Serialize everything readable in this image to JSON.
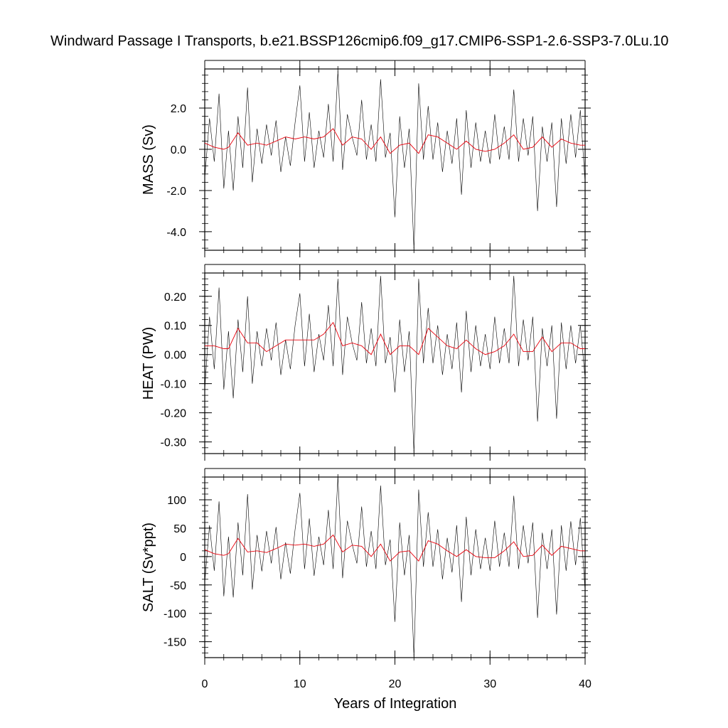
{
  "title": "Windward Passage I Transports, b.e21.BSSP126cmip6.f09_g17.CMIP6-SSP1-2.6-SSP3-7.0Lu.10",
  "xlabel": "Years of Integration",
  "colors": {
    "raw": "#000000",
    "smooth": "#e8000b",
    "frame": "#000000"
  },
  "chart_data": [
    {
      "type": "line",
      "ylabel": "MASS (Sv)",
      "xlim": [
        0,
        40
      ],
      "ylim": [
        -4.9,
        3.9
      ],
      "xticks": [
        0,
        10,
        20,
        30,
        40
      ],
      "xtick_labels": [
        "0",
        "10",
        "20",
        "30",
        "40"
      ],
      "yticks": [
        2.0,
        0.0,
        -2.0,
        -4.0
      ],
      "ytick_labels": [
        "2.0",
        "0.0",
        "-2.0",
        "-4.0"
      ],
      "series": [
        {
          "style": "thin-black",
          "x": [
            0,
            0.5,
            1,
            1.5,
            2,
            2.5,
            3,
            3.5,
            4,
            4.5,
            5,
            5.5,
            6,
            6.5,
            7,
            7.5,
            8,
            8.5,
            9,
            9.5,
            10,
            10.5,
            11,
            11.5,
            12,
            12.5,
            13,
            13.5,
            14,
            14.5,
            15,
            15.5,
            16,
            16.5,
            17,
            17.5,
            18,
            18.5,
            19,
            19.5,
            20,
            20.5,
            21,
            21.5,
            22,
            22.5,
            23,
            23.5,
            24,
            24.5,
            25,
            25.5,
            26,
            26.5,
            27,
            27.5,
            28,
            28.5,
            29,
            29.5,
            30,
            30.5,
            31,
            31.5,
            32,
            32.5,
            33,
            33.5,
            34,
            34.5,
            35,
            35.5,
            36,
            36.5,
            37,
            37.5,
            38,
            38.5,
            39,
            39.5,
            40
          ],
          "y": [
            -1.4,
            1.5,
            -0.6,
            2.7,
            -1.9,
            0.9,
            -2.0,
            1.6,
            -0.9,
            3.0,
            -1.6,
            1.0,
            -0.7,
            1.2,
            -0.3,
            1.4,
            -1.1,
            0.6,
            -0.8,
            1.3,
            3.1,
            -0.6,
            1.8,
            -0.9,
            0.9,
            -0.4,
            2.2,
            -0.6,
            3.8,
            -1.0,
            1.7,
            0.6,
            -0.3,
            2.4,
            -0.5,
            1.2,
            -0.6,
            3.4,
            -0.4,
            0.8,
            -3.3,
            1.6,
            -0.9,
            1.0,
            -4.9,
            3.2,
            -0.5,
            2.1,
            -0.5,
            1.3,
            -1.1,
            0.9,
            -0.7,
            1.5,
            -2.2,
            1.9,
            -0.9,
            1.3,
            -0.6,
            0.9,
            -0.7,
            1.7,
            -0.5,
            1.1,
            -0.5,
            2.9,
            -0.6,
            1.5,
            -0.3,
            1.6,
            -3.0,
            1.1,
            -0.6,
            1.3,
            -2.8,
            1.5,
            -0.7,
            1.7,
            -0.4,
            1.9,
            -1.6
          ]
        },
        {
          "style": "smooth-red",
          "x": [
            0,
            1,
            2,
            2.5,
            3.5,
            4.5,
            5.5,
            6.5,
            7.5,
            8.5,
            9.5,
            10.5,
            11.5,
            12.5,
            13.5,
            14.5,
            15.5,
            16.5,
            17.5,
            18.5,
            19.5,
            20.5,
            21.5,
            22.5,
            23.5,
            24.5,
            25.5,
            26.5,
            27.5,
            28.5,
            29.5,
            30.5,
            31.5,
            32.5,
            33.5,
            34.5,
            35.5,
            36.5,
            37.5,
            38.5,
            39.5,
            40
          ],
          "y": [
            0.3,
            0.1,
            0.0,
            0.1,
            0.8,
            0.2,
            0.3,
            0.2,
            0.4,
            0.6,
            0.5,
            0.6,
            0.5,
            0.6,
            1.0,
            0.2,
            0.6,
            0.5,
            0.0,
            0.6,
            -0.2,
            0.2,
            0.3,
            -0.2,
            0.7,
            0.6,
            0.3,
            0.0,
            0.4,
            0.0,
            -0.1,
            0.0,
            0.3,
            0.7,
            0.0,
            0.1,
            0.6,
            0.1,
            0.5,
            0.3,
            0.2,
            0.2
          ]
        }
      ]
    },
    {
      "type": "line",
      "ylabel": "HEAT (PW)",
      "xlim": [
        0,
        40
      ],
      "ylim": [
        -0.34,
        0.28
      ],
      "xticks": [
        0,
        10,
        20,
        30,
        40
      ],
      "xtick_labels": [
        "",
        "",
        "",
        "",
        ""
      ],
      "yticks": [
        0.2,
        0.1,
        0.0,
        -0.1,
        -0.2,
        -0.3
      ],
      "ytick_labels": [
        "0.20",
        "0.10",
        "0.00",
        "-0.10",
        "-0.20",
        "-0.30"
      ],
      "series": [
        {
          "style": "thin-black",
          "x": [
            0,
            0.5,
            1,
            1.5,
            2,
            2.5,
            3,
            3.5,
            4,
            4.5,
            5,
            5.5,
            6,
            6.5,
            7,
            7.5,
            8,
            8.5,
            9,
            9.5,
            10,
            10.5,
            11,
            11.5,
            12,
            12.5,
            13,
            13.5,
            14,
            14.5,
            15,
            15.5,
            16,
            16.5,
            17,
            17.5,
            18,
            18.5,
            19,
            19.5,
            20,
            20.5,
            21,
            21.5,
            22,
            22.5,
            23,
            23.5,
            24,
            24.5,
            25,
            25.5,
            26,
            26.5,
            27,
            27.5,
            28,
            28.5,
            29,
            29.5,
            30,
            30.5,
            31,
            31.5,
            32,
            32.5,
            33,
            33.5,
            34,
            34.5,
            35,
            35.5,
            36,
            36.5,
            37,
            37.5,
            38,
            38.5,
            39,
            39.5,
            40
          ],
          "y": [
            -0.12,
            0.13,
            -0.05,
            0.23,
            -0.12,
            0.08,
            -0.15,
            0.12,
            -0.06,
            0.2,
            -0.1,
            0.08,
            -0.04,
            0.09,
            -0.02,
            0.11,
            -0.07,
            0.05,
            -0.05,
            0.1,
            0.21,
            -0.04,
            0.14,
            -0.06,
            0.07,
            -0.02,
            0.17,
            -0.04,
            0.26,
            -0.07,
            0.13,
            0.04,
            -0.02,
            0.18,
            -0.03,
            0.09,
            -0.04,
            0.27,
            -0.03,
            0.06,
            -0.13,
            0.12,
            -0.06,
            0.08,
            -0.34,
            0.26,
            -0.03,
            0.16,
            -0.03,
            0.1,
            -0.07,
            0.07,
            -0.05,
            0.11,
            -0.13,
            0.15,
            -0.06,
            0.1,
            -0.04,
            0.07,
            -0.05,
            0.13,
            -0.03,
            0.09,
            -0.03,
            0.27,
            -0.04,
            0.12,
            -0.02,
            0.13,
            -0.23,
            0.09,
            -0.04,
            0.1,
            -0.22,
            0.11,
            -0.05,
            0.1,
            -0.03,
            0.1,
            -0.08
          ]
        },
        {
          "style": "smooth-red",
          "x": [
            0,
            1,
            2,
            2.5,
            3.5,
            4.5,
            5.5,
            6.5,
            7.5,
            8.5,
            9.5,
            10.5,
            11.5,
            12.5,
            13.5,
            14.5,
            15.5,
            16.5,
            17.5,
            18.5,
            19.5,
            20.5,
            21.5,
            22.5,
            23.5,
            24.5,
            25.5,
            26.5,
            27.5,
            28.5,
            29.5,
            30.5,
            31.5,
            32.5,
            33.5,
            34.5,
            35.5,
            36.5,
            37.5,
            38.5,
            39.5,
            40
          ],
          "y": [
            0.03,
            0.03,
            0.02,
            0.02,
            0.09,
            0.04,
            0.04,
            0.01,
            0.03,
            0.05,
            0.05,
            0.05,
            0.05,
            0.07,
            0.11,
            0.03,
            0.04,
            0.03,
            0.0,
            0.07,
            0.0,
            0.03,
            0.03,
            0.0,
            0.09,
            0.06,
            0.03,
            0.02,
            0.05,
            0.02,
            0.0,
            0.01,
            0.03,
            0.07,
            0.01,
            0.01,
            0.06,
            0.01,
            0.04,
            0.04,
            0.02,
            0.02
          ]
        }
      ]
    },
    {
      "type": "line",
      "ylabel": "SALT (Sv*ppt)",
      "xlim": [
        0,
        40
      ],
      "ylim": [
        -178,
        140
      ],
      "xticks": [
        0,
        10,
        20,
        30,
        40
      ],
      "xtick_labels": [
        "0",
        "10",
        "20",
        "30",
        "40"
      ],
      "yticks": [
        100,
        50,
        0,
        -50,
        -100,
        -150
      ],
      "ytick_labels": [
        "100",
        "50",
        "0",
        "-50",
        "-100",
        "-150"
      ],
      "series": [
        {
          "style": "thin-black",
          "x": [
            0,
            0.5,
            1,
            1.5,
            2,
            2.5,
            3,
            3.5,
            4,
            4.5,
            5,
            5.5,
            6,
            6.5,
            7,
            7.5,
            8,
            8.5,
            9,
            9.5,
            10,
            10.5,
            11,
            11.5,
            12,
            12.5,
            13,
            13.5,
            14,
            14.5,
            15,
            15.5,
            16,
            16.5,
            17,
            17.5,
            18,
            18.5,
            19,
            19.5,
            20,
            20.5,
            21,
            21.5,
            22,
            22.5,
            23,
            23.5,
            24,
            24.5,
            25,
            25.5,
            26,
            26.5,
            27,
            27.5,
            28,
            28.5,
            29,
            29.5,
            30,
            30.5,
            31,
            31.5,
            32,
            32.5,
            33,
            33.5,
            34,
            34.5,
            35,
            35.5,
            36,
            36.5,
            37,
            37.5,
            38,
            38.5,
            39,
            39.5,
            40
          ],
          "y": [
            -45,
            55,
            -25,
            97,
            -70,
            35,
            -72,
            60,
            -33,
            110,
            -58,
            38,
            -26,
            45,
            -12,
            52,
            -40,
            25,
            -30,
            48,
            112,
            -22,
            67,
            -34,
            35,
            -15,
            82,
            -22,
            140,
            -38,
            63,
            22,
            -12,
            88,
            -18,
            45,
            -22,
            125,
            -15,
            30,
            -115,
            60,
            -33,
            38,
            -178,
            118,
            -18,
            78,
            -18,
            48,
            -40,
            33,
            -28,
            55,
            -80,
            70,
            -33,
            48,
            -22,
            33,
            -25,
            63,
            -18,
            42,
            -18,
            107,
            -22,
            55,
            -12,
            60,
            -108,
            42,
            -22,
            48,
            -102,
            55,
            -25,
            62,
            -15,
            68,
            -60
          ]
        },
        {
          "style": "smooth-red",
          "x": [
            0,
            1,
            2,
            2.5,
            3.5,
            4.5,
            5.5,
            6.5,
            7.5,
            8.5,
            9.5,
            10.5,
            11.5,
            12.5,
            13.5,
            14.5,
            15.5,
            16.5,
            17.5,
            18.5,
            19.5,
            20.5,
            21.5,
            22.5,
            23.5,
            24.5,
            25.5,
            26.5,
            27.5,
            28.5,
            29.5,
            30.5,
            31.5,
            32.5,
            33.5,
            34.5,
            35.5,
            36.5,
            37.5,
            38.5,
            39.5,
            40
          ],
          "y": [
            12,
            5,
            2,
            5,
            32,
            8,
            10,
            7,
            14,
            22,
            20,
            22,
            18,
            22,
            38,
            8,
            20,
            18,
            0,
            22,
            -8,
            8,
            10,
            -8,
            28,
            22,
            10,
            0,
            12,
            0,
            -2,
            -2,
            10,
            26,
            0,
            2,
            20,
            2,
            18,
            14,
            10,
            10
          ]
        }
      ]
    }
  ]
}
